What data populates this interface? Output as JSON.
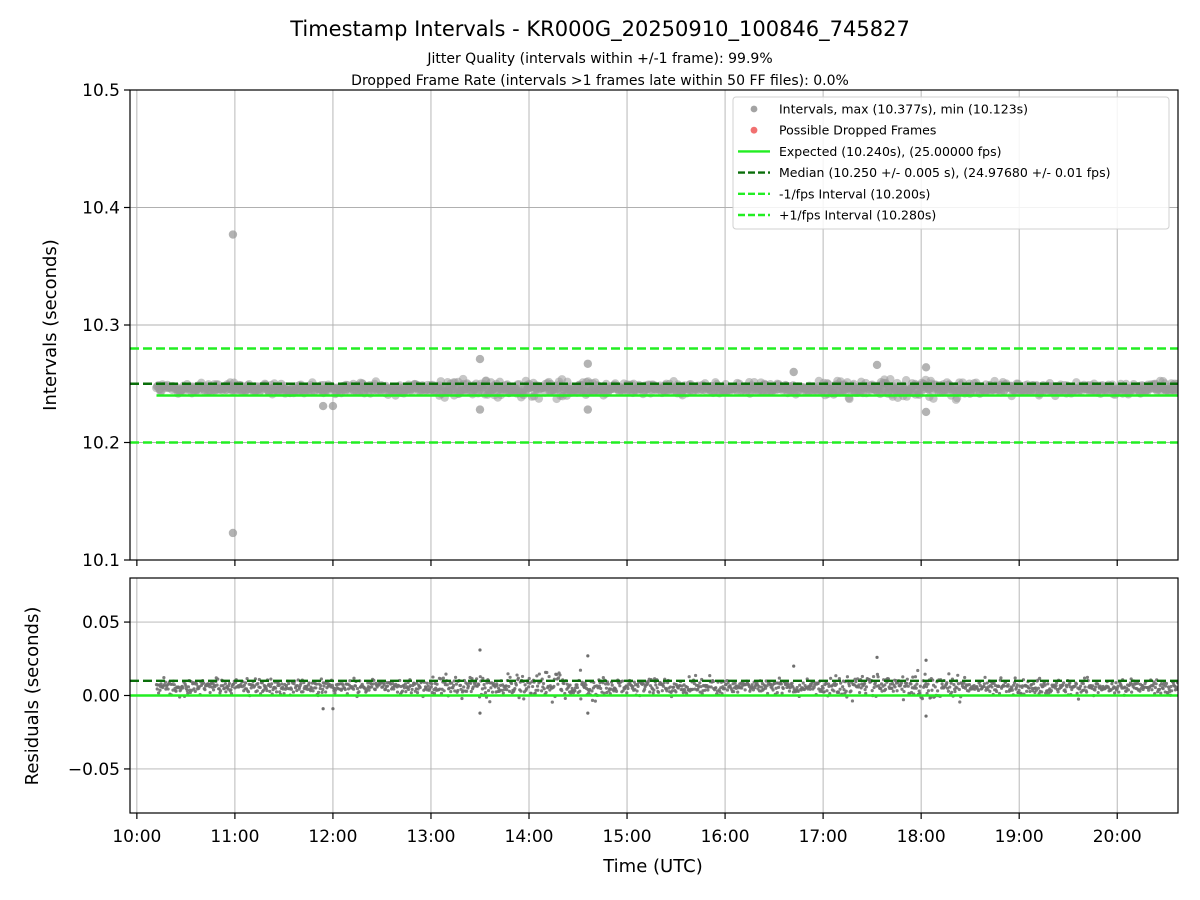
{
  "chart_data": [
    {
      "type": "scatter",
      "title": "Timestamp Intervals - KR000G_20250910_100846_745827",
      "subtitle_lines": [
        "Jitter Quality (intervals within +/-1 frame): 99.9%",
        "Dropped Frame Rate (intervals >1 frames late within 50 FF files): 0.0%"
      ],
      "xlabel": "",
      "ylabel": "Intervals (seconds)",
      "x_unit": "hours UTC",
      "xlim": [
        9.93,
        20.62
      ],
      "ylim": [
        10.1,
        10.5
      ],
      "y_ticks": [
        10.1,
        10.2,
        10.3,
        10.4,
        10.5
      ],
      "y_tick_labels": [
        "10.1",
        "10.2",
        "10.3",
        "10.4",
        "10.5"
      ],
      "grid": true,
      "legend_position": "top-right",
      "legend": [
        {
          "label": "Intervals, max (10.377s), min (10.123s)",
          "kind": "marker",
          "color": "#999999"
        },
        {
          "label": "Possible Dropped Frames",
          "kind": "marker",
          "color": "#f06060"
        },
        {
          "label": "Expected (10.240s), (25.00000 fps)",
          "kind": "solid",
          "color": "#22ee22"
        },
        {
          "label": "Median (10.250 +/- 0.005 s), (24.97680 +/- 0.01 fps)",
          "kind": "dashed",
          "color": "#0a6e0a"
        },
        {
          "label": "-1/fps Interval (10.200s)",
          "kind": "dashed",
          "color": "#22ee22"
        },
        {
          "label": "+1/fps Interval (10.280s)",
          "kind": "dashed",
          "color": "#22ee22"
        }
      ],
      "reference_lines": [
        {
          "name": "Expected",
          "y": 10.24,
          "x_start": 10.2,
          "style": "solid",
          "color": "#22ee22"
        },
        {
          "name": "Median",
          "y": 10.25,
          "style": "dashed",
          "color": "#0a6e0a"
        },
        {
          "name": "-1/fps Interval",
          "y": 10.2,
          "style": "dashed",
          "color": "#22ee22"
        },
        {
          "name": "+1/fps Interval",
          "y": 10.28,
          "style": "dashed",
          "color": "#22ee22"
        }
      ],
      "series": [
        {
          "name": "Intervals",
          "color": "#999999",
          "x_range": [
            10.2,
            20.62
          ],
          "band_center": 10.246,
          "band_halfwidth": 0.006,
          "outliers": [
            {
              "x": 10.98,
              "y": 10.377
            },
            {
              "x": 10.98,
              "y": 10.123
            },
            {
              "x": 13.5,
              "y": 10.271
            },
            {
              "x": 14.6,
              "y": 10.267
            },
            {
              "x": 17.55,
              "y": 10.266
            },
            {
              "x": 18.05,
              "y": 10.264
            },
            {
              "x": 13.5,
              "y": 10.228
            },
            {
              "x": 14.6,
              "y": 10.228
            },
            {
              "x": 18.05,
              "y": 10.226
            },
            {
              "x": 16.7,
              "y": 10.26
            },
            {
              "x": 11.9,
              "y": 10.231
            },
            {
              "x": 12.0,
              "y": 10.231
            }
          ]
        }
      ]
    },
    {
      "type": "scatter",
      "xlabel": "Time (UTC)",
      "ylabel": "Residuals (seconds)",
      "xlim": [
        9.93,
        20.62
      ],
      "ylim": [
        -0.08,
        0.08
      ],
      "y_ticks": [
        -0.05,
        0.0,
        0.05
      ],
      "y_tick_labels": [
        "−0.05",
        "0.00",
        "0.05"
      ],
      "x_ticks": [
        10,
        11,
        12,
        13,
        14,
        15,
        16,
        17,
        18,
        19,
        20
      ],
      "x_tick_labels": [
        "10:00",
        "11:00",
        "12:00",
        "13:00",
        "14:00",
        "15:00",
        "16:00",
        "17:00",
        "18:00",
        "19:00",
        "20:00"
      ],
      "grid": true,
      "reference_lines": [
        {
          "name": "Expected",
          "y": 0.0,
          "style": "solid",
          "color": "#22ee22"
        },
        {
          "name": "Median",
          "y": 0.01,
          "style": "dashed",
          "color": "#0a6e0a"
        }
      ],
      "series": [
        {
          "name": "Residuals",
          "color": "#6e6e6e",
          "x_range": [
            10.2,
            20.62
          ],
          "band_center": 0.006,
          "band_halfwidth": 0.007,
          "outliers": [
            {
              "x": 13.5,
              "y": 0.031
            },
            {
              "x": 14.6,
              "y": 0.027
            },
            {
              "x": 17.55,
              "y": 0.026
            },
            {
              "x": 18.05,
              "y": 0.024
            },
            {
              "x": 13.5,
              "y": -0.012
            },
            {
              "x": 14.6,
              "y": -0.012
            },
            {
              "x": 18.05,
              "y": -0.014
            },
            {
              "x": 11.9,
              "y": -0.009
            },
            {
              "x": 12.0,
              "y": -0.009
            },
            {
              "x": 16.7,
              "y": 0.02
            }
          ]
        }
      ]
    }
  ]
}
